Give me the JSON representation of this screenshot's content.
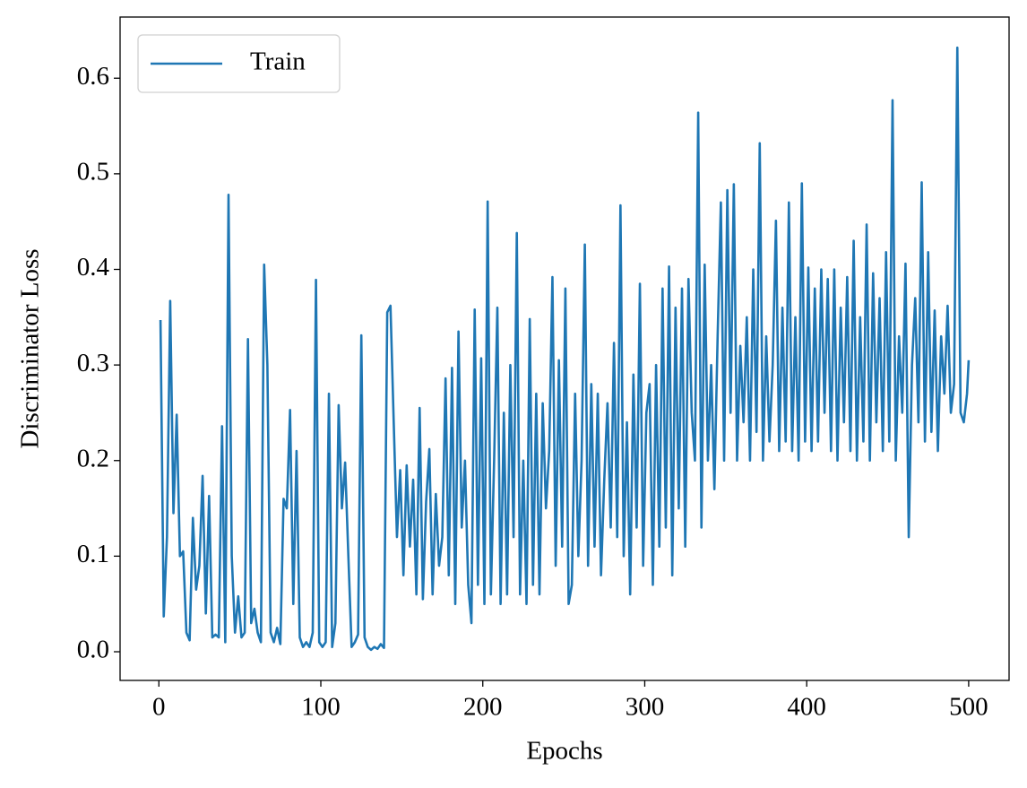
{
  "chart_data": {
    "type": "line",
    "xlabel": "Epochs",
    "ylabel": "Discriminator Loss",
    "x": [
      1,
      3,
      5,
      7,
      9,
      11,
      13,
      15,
      17,
      19,
      21,
      23,
      25,
      27,
      29,
      31,
      33,
      35,
      37,
      39,
      41,
      43,
      45,
      47,
      49,
      51,
      53,
      55,
      57,
      59,
      61,
      63,
      65,
      67,
      69,
      71,
      73,
      75,
      77,
      79,
      81,
      83,
      85,
      87,
      89,
      91,
      93,
      95,
      97,
      99,
      101,
      103,
      105,
      107,
      109,
      111,
      113,
      115,
      117,
      119,
      121,
      123,
      125,
      127,
      129,
      131,
      133,
      135,
      137,
      139,
      141,
      143,
      145,
      147,
      149,
      151,
      153,
      155,
      157,
      159,
      161,
      163,
      165,
      167,
      169,
      171,
      173,
      175,
      177,
      179,
      181,
      183,
      185,
      187,
      189,
      191,
      193,
      195,
      197,
      199,
      201,
      203,
      205,
      207,
      209,
      211,
      213,
      215,
      217,
      219,
      221,
      223,
      225,
      227,
      229,
      231,
      233,
      235,
      237,
      239,
      241,
      243,
      245,
      247,
      249,
      251,
      253,
      255,
      257,
      259,
      261,
      263,
      265,
      267,
      269,
      271,
      273,
      275,
      277,
      279,
      281,
      283,
      285,
      287,
      289,
      291,
      293,
      295,
      297,
      299,
      301,
      303,
      305,
      307,
      309,
      311,
      313,
      315,
      317,
      319,
      321,
      323,
      325,
      327,
      329,
      331,
      333,
      335,
      337,
      339,
      341,
      343,
      345,
      347,
      349,
      351,
      353,
      355,
      357,
      359,
      361,
      363,
      365,
      367,
      369,
      371,
      373,
      375,
      377,
      379,
      381,
      383,
      385,
      387,
      389,
      391,
      393,
      395,
      397,
      399,
      401,
      403,
      405,
      407,
      409,
      411,
      413,
      415,
      417,
      419,
      421,
      423,
      425,
      427,
      429,
      431,
      433,
      435,
      437,
      439,
      441,
      443,
      445,
      447,
      449,
      451,
      453,
      455,
      457,
      459,
      461,
      463,
      465,
      467,
      469,
      471,
      473,
      475,
      477,
      479,
      481,
      483,
      485,
      487,
      489,
      491,
      493,
      495,
      497,
      499,
      500
    ],
    "series": [
      {
        "name": "Train",
        "color": "#1f77b4",
        "values": [
          0.347,
          0.037,
          0.12,
          0.367,
          0.145,
          0.248,
          0.1,
          0.105,
          0.02,
          0.012,
          0.14,
          0.065,
          0.09,
          0.184,
          0.04,
          0.163,
          0.015,
          0.018,
          0.015,
          0.236,
          0.01,
          0.478,
          0.1,
          0.02,
          0.058,
          0.015,
          0.02,
          0.327,
          0.03,
          0.045,
          0.02,
          0.01,
          0.405,
          0.3,
          0.02,
          0.01,
          0.025,
          0.008,
          0.16,
          0.15,
          0.253,
          0.05,
          0.21,
          0.015,
          0.005,
          0.01,
          0.005,
          0.02,
          0.389,
          0.01,
          0.005,
          0.01,
          0.27,
          0.005,
          0.03,
          0.258,
          0.15,
          0.198,
          0.1,
          0.005,
          0.01,
          0.018,
          0.331,
          0.015,
          0.005,
          0.002,
          0.005,
          0.003,
          0.008,
          0.004,
          0.355,
          0.362,
          0.24,
          0.12,
          0.19,
          0.08,
          0.195,
          0.11,
          0.18,
          0.06,
          0.255,
          0.055,
          0.157,
          0.212,
          0.06,
          0.165,
          0.09,
          0.12,
          0.286,
          0.08,
          0.297,
          0.05,
          0.335,
          0.13,
          0.2,
          0.07,
          0.03,
          0.358,
          0.07,
          0.307,
          0.05,
          0.471,
          0.06,
          0.2,
          0.36,
          0.05,
          0.25,
          0.06,
          0.3,
          0.12,
          0.438,
          0.06,
          0.2,
          0.05,
          0.348,
          0.07,
          0.27,
          0.06,
          0.26,
          0.15,
          0.21,
          0.392,
          0.09,
          0.305,
          0.11,
          0.38,
          0.05,
          0.07,
          0.27,
          0.1,
          0.2,
          0.426,
          0.09,
          0.28,
          0.11,
          0.27,
          0.08,
          0.18,
          0.26,
          0.13,
          0.323,
          0.12,
          0.467,
          0.1,
          0.24,
          0.06,
          0.29,
          0.13,
          0.385,
          0.09,
          0.25,
          0.28,
          0.07,
          0.3,
          0.11,
          0.38,
          0.13,
          0.403,
          0.08,
          0.36,
          0.15,
          0.38,
          0.11,
          0.39,
          0.25,
          0.2,
          0.564,
          0.13,
          0.405,
          0.2,
          0.3,
          0.17,
          0.33,
          0.47,
          0.2,
          0.483,
          0.25,
          0.489,
          0.2,
          0.32,
          0.24,
          0.35,
          0.2,
          0.4,
          0.23,
          0.532,
          0.2,
          0.33,
          0.22,
          0.3,
          0.451,
          0.21,
          0.36,
          0.22,
          0.47,
          0.21,
          0.35,
          0.2,
          0.49,
          0.22,
          0.402,
          0.21,
          0.38,
          0.22,
          0.4,
          0.25,
          0.39,
          0.21,
          0.4,
          0.2,
          0.36,
          0.24,
          0.392,
          0.21,
          0.43,
          0.2,
          0.35,
          0.22,
          0.447,
          0.2,
          0.396,
          0.24,
          0.37,
          0.21,
          0.418,
          0.22,
          0.577,
          0.2,
          0.33,
          0.25,
          0.406,
          0.12,
          0.3,
          0.37,
          0.24,
          0.491,
          0.22,
          0.418,
          0.23,
          0.357,
          0.21,
          0.33,
          0.27,
          0.362,
          0.25,
          0.28,
          0.632,
          0.25,
          0.24,
          0.27,
          0.305
        ]
      }
    ],
    "xlim": [
      -23.95,
      524.95
    ],
    "xticks": [
      0,
      100,
      200,
      300,
      400,
      500
    ],
    "ylim": [
      -0.03,
      0.664
    ],
    "yticks": [
      {
        "value": 0,
        "label": "0.0"
      },
      0.1,
      0.2,
      0.3,
      0.4,
      0.5,
      0.6
    ],
    "grid": false,
    "legend": "upper left"
  }
}
